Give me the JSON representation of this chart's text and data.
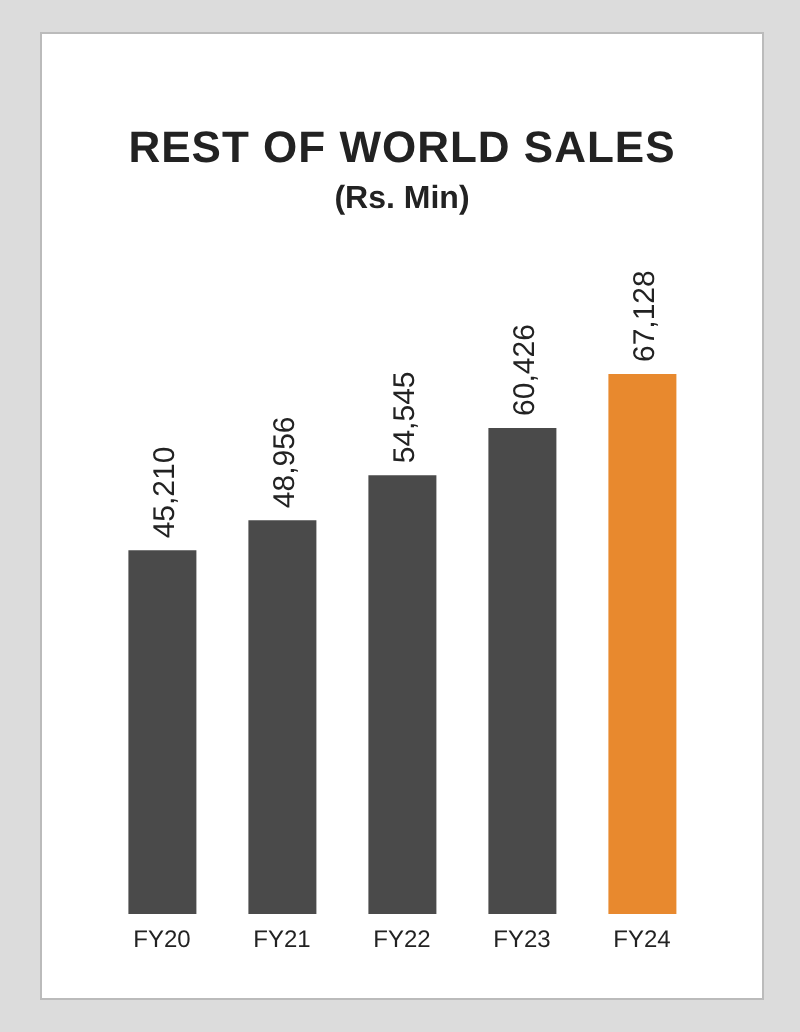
{
  "chart_data": {
    "type": "bar",
    "title": "REST OF WORLD SALES",
    "subtitle": "(Rs. Min)",
    "categories": [
      "FY20",
      "FY21",
      "FY22",
      "FY23",
      "FY24"
    ],
    "values": [
      45210,
      48956,
      54545,
      60426,
      67128
    ],
    "colors": [
      "#4a4a4a",
      "#4a4a4a",
      "#4a4a4a",
      "#4a4a4a",
      "#e8892e"
    ],
    "value_labels": [
      "45,210",
      "48,956",
      "54,545",
      "60,426",
      "67,128"
    ],
    "grid": false,
    "legend": false
  }
}
